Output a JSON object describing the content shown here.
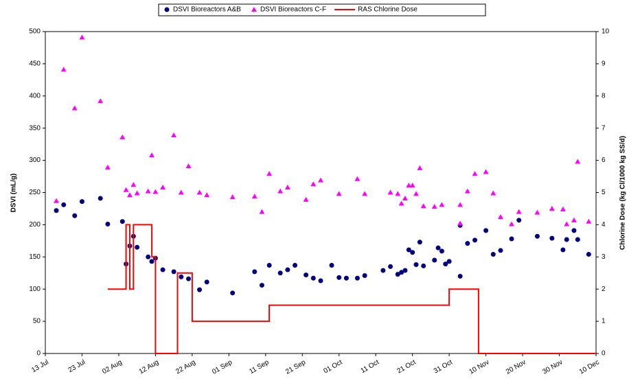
{
  "chart_data": {
    "type": "scatter",
    "y_label": "DSVI (mL/g)",
    "y2_label": "Chlorine Dose (kg Cl/1000 kg SS/d)",
    "xlim": [
      "13 Jul",
      "10 Dec"
    ],
    "xticks": [
      "13 Jul",
      "23 Jul",
      "02 Aug",
      "12 Aug",
      "22 Aug",
      "01 Sep",
      "11 Sep",
      "21 Sep",
      "01 Oct",
      "11 Oct",
      "21 Oct",
      "31 Oct",
      "10 Nov",
      "20 Nov",
      "30 Nov",
      "10 Dec"
    ],
    "ylim": [
      0,
      500
    ],
    "yticks": [
      0,
      50,
      100,
      150,
      200,
      250,
      300,
      350,
      400,
      450,
      500
    ],
    "y2lim": [
      0,
      10
    ],
    "y2ticks": [
      0,
      1,
      2,
      3,
      4,
      5,
      6,
      7,
      8,
      9,
      10
    ],
    "grid": false,
    "legend": "top",
    "series": [
      {
        "name": "DSVI Bioreactors A&B",
        "type": "scatter",
        "marker": "circle",
        "color": "#000080",
        "x": [
          "16 Jul",
          "18 Jul",
          "21 Jul",
          "23 Jul",
          "28 Jul",
          "30 Jul",
          "3 Aug",
          "4 Aug",
          "5 Aug",
          "6 Aug",
          "7 Aug",
          "10 Aug",
          "11 Aug",
          "12 Aug",
          "14 Aug",
          "17 Aug",
          "19 Aug",
          "21 Aug",
          "24 Aug",
          "26 Aug",
          "2 Sep",
          "8 Sep",
          "10 Sep",
          "12 Sep",
          "15 Sep",
          "17 Sep",
          "19 Sep",
          "22 Sep",
          "24 Sep",
          "26 Sep",
          "29 Sep",
          "1 Oct",
          "3 Oct",
          "6 Oct",
          "8 Oct",
          "13 Oct",
          "15 Oct",
          "17 Oct",
          "18 Oct",
          "19 Oct",
          "20 Oct",
          "21 Oct",
          "22 Oct",
          "23 Oct",
          "24 Oct",
          "27 Oct",
          "28 Oct",
          "29 Oct",
          "30 Oct",
          "31 Oct",
          "3 Nov",
          "3 Nov",
          "5 Nov",
          "7 Nov",
          "10 Nov",
          "12 Nov",
          "14 Nov",
          "17 Nov",
          "19 Nov",
          "24 Nov",
          "28 Nov",
          "1 Dec",
          "2 Dec",
          "4 Dec",
          "5 Dec",
          "8 Dec"
        ],
        "values": [
          222,
          231,
          214,
          236,
          241,
          201,
          205,
          139,
          167,
          182,
          165,
          150,
          143,
          148,
          130,
          127,
          119,
          116,
          99,
          111,
          94,
          127,
          106,
          137,
          125,
          130,
          137,
          122,
          117,
          113,
          137,
          118,
          117,
          117,
          121,
          129,
          135,
          123,
          126,
          129,
          161,
          157,
          138,
          173,
          136,
          145,
          164,
          159,
          139,
          143,
          199,
          120,
          171,
          176,
          191,
          154,
          160,
          178,
          207,
          182,
          179,
          161,
          177,
          191,
          177,
          154
        ]
      },
      {
        "name": "DSVI Bioreactors C-F",
        "type": "scatter",
        "marker": "triangle",
        "color": "#ff00ff",
        "x": [
          "16 Jul",
          "18 Jul",
          "21 Jul",
          "23 Jul",
          "28 Jul",
          "30 Jul",
          "3 Aug",
          "4 Aug",
          "5 Aug",
          "6 Aug",
          "7 Aug",
          "10 Aug",
          "11 Aug",
          "12 Aug",
          "14 Aug",
          "17 Aug",
          "19 Aug",
          "21 Aug",
          "24 Aug",
          "26 Aug",
          "2 Sep",
          "8 Sep",
          "10 Sep",
          "12 Sep",
          "15 Sep",
          "17 Sep",
          "22 Sep",
          "24 Sep",
          "26 Sep",
          "1 Oct",
          "6 Oct",
          "8 Oct",
          "15 Oct",
          "17 Oct",
          "18 Oct",
          "19 Oct",
          "20 Oct",
          "21 Oct",
          "22 Oct",
          "23 Oct",
          "24 Oct",
          "27 Oct",
          "29 Oct",
          "3 Nov",
          "3 Nov",
          "5 Nov",
          "7 Nov",
          "10 Nov",
          "12 Nov",
          "14 Nov",
          "17 Nov",
          "19 Nov",
          "24 Nov",
          "28 Nov",
          "1 Dec",
          "2 Dec",
          "4 Dec",
          "5 Dec",
          "8 Dec"
        ],
        "values": [
          237,
          441,
          381,
          491,
          392,
          289,
          336,
          254,
          246,
          262,
          249,
          252,
          308,
          251,
          258,
          339,
          250,
          291,
          250,
          246,
          243,
          244,
          220,
          279,
          252,
          258,
          239,
          263,
          269,
          248,
          271,
          248,
          250,
          248,
          233,
          241,
          261,
          261,
          248,
          288,
          229,
          228,
          231,
          202,
          231,
          252,
          279,
          282,
          249,
          212,
          201,
          220,
          219,
          225,
          224,
          201,
          207,
          298,
          205
        ]
      },
      {
        "name": "RAS Chlorine Dose",
        "type": "line",
        "axis": "y2",
        "color": "#ff0000",
        "x": [
          "30 Jul",
          "4 Aug",
          "4 Aug",
          "5 Aug",
          "5 Aug",
          "6 Aug",
          "6 Aug",
          "11 Aug",
          "11 Aug",
          "12 Aug",
          "12 Aug",
          "18 Aug",
          "18 Aug",
          "22 Aug",
          "22 Aug",
          "12 Sep",
          "12 Sep",
          "31 Oct",
          "31 Oct",
          "8 Nov",
          "8 Nov",
          "10 Dec"
        ],
        "values": [
          2,
          2,
          4,
          4,
          2,
          2,
          4,
          4,
          3,
          3,
          0,
          0,
          2.5,
          2.5,
          1,
          1,
          1.5,
          1.5,
          2,
          2,
          0,
          0
        ]
      }
    ]
  }
}
